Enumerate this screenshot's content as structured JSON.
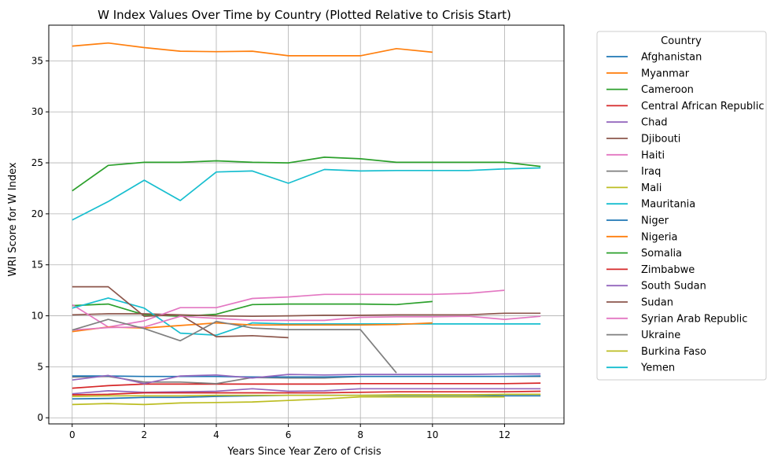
{
  "chart_data": {
    "type": "line",
    "title": "W Index Values Over Time by Country (Plotted Relative to Crisis Start)",
    "xlabel": "Years Since Year Zero of Crisis",
    "ylabel": "WRI Score for W Index",
    "xlim": [
      -0.65,
      13.65
    ],
    "ylim": [
      -0.6,
      38.5
    ],
    "xticks": [
      0,
      2,
      4,
      6,
      8,
      10,
      12
    ],
    "yticks": [
      0,
      5,
      10,
      15,
      20,
      25,
      30,
      35
    ],
    "grid": true,
    "legend": {
      "title": "Country",
      "placement": "outside-right"
    },
    "series": [
      {
        "name": "Afghanistan",
        "color": "#1f77b4",
        "x": [
          0,
          1,
          2,
          3,
          4,
          5,
          6,
          7,
          8,
          9,
          10,
          11,
          12,
          13
        ],
        "y": [
          1.85,
          1.9,
          2.0,
          2.0,
          2.1,
          2.15,
          2.2,
          2.2,
          2.2,
          2.2,
          2.2,
          2.2,
          2.15,
          2.15
        ]
      },
      {
        "name": "Myanmar",
        "color": "#ff7f0e",
        "x": [
          0,
          1,
          2,
          3,
          4,
          5,
          6,
          7,
          8,
          9,
          10
        ],
        "y": [
          36.45,
          36.75,
          36.3,
          35.95,
          35.9,
          35.95,
          35.5,
          35.5,
          35.5,
          36.2,
          35.85
        ]
      },
      {
        "name": "Cameroon",
        "color": "#2ca02c",
        "x": [
          0,
          1,
          2,
          3,
          4,
          5,
          6,
          7,
          8,
          9,
          10
        ],
        "y": [
          11.0,
          11.15,
          10.1,
          9.95,
          10.15,
          11.1,
          11.15,
          11.15,
          11.15,
          11.1,
          11.4
        ]
      },
      {
        "name": "Central African Republic",
        "color": "#d62728",
        "x": [
          0,
          1,
          2,
          3,
          4,
          5,
          6,
          7,
          8,
          9,
          10,
          11,
          12,
          13
        ],
        "y": [
          2.9,
          3.15,
          3.3,
          3.3,
          3.3,
          3.3,
          3.3,
          3.3,
          3.35,
          3.35,
          3.35,
          3.35,
          3.35,
          3.4
        ]
      },
      {
        "name": "Chad",
        "color": "#9467bd",
        "x": [
          0,
          1,
          2,
          3,
          4,
          5,
          6,
          7,
          8,
          9,
          10,
          11,
          12,
          13
        ],
        "y": [
          2.35,
          2.65,
          2.5,
          2.55,
          2.6,
          2.85,
          2.6,
          2.65,
          2.85,
          2.85,
          2.85,
          2.85,
          2.85,
          2.85
        ]
      },
      {
        "name": "Djibouti",
        "color": "#8c564b",
        "x": [
          0,
          1,
          2,
          3,
          4,
          5,
          6,
          7,
          8,
          9,
          10,
          11,
          12,
          13
        ],
        "y": [
          10.1,
          10.2,
          10.2,
          10.1,
          10.0,
          9.95,
          10.0,
          10.05,
          10.05,
          10.1,
          10.1,
          10.1,
          10.25,
          10.25
        ]
      },
      {
        "name": "Haiti",
        "color": "#e377c2",
        "x": [
          0,
          1,
          2,
          3,
          4,
          5,
          6,
          7,
          8,
          9,
          10,
          11,
          12
        ],
        "y": [
          11.1,
          8.9,
          9.5,
          10.8,
          10.8,
          11.7,
          11.85,
          12.1,
          12.1,
          12.1,
          12.1,
          12.2,
          12.5
        ]
      },
      {
        "name": "Iraq",
        "color": "#7f7f7f",
        "x": [
          0,
          1,
          2,
          3,
          4,
          5,
          6,
          7,
          8,
          9,
          10,
          11,
          12,
          13
        ],
        "y": [
          4.0,
          4.05,
          3.5,
          3.5,
          3.35,
          3.95,
          3.9,
          3.9,
          4.05,
          4.05,
          4.05,
          4.05,
          4.05,
          4.05
        ]
      },
      {
        "name": "Mali",
        "color": "#bcbd22",
        "x": [
          0,
          1,
          2,
          3,
          4,
          5,
          6,
          7,
          8,
          9,
          10,
          11,
          12
        ],
        "y": [
          1.3,
          1.4,
          1.3,
          1.45,
          1.5,
          1.55,
          1.7,
          1.85,
          2.05,
          2.05,
          2.05,
          2.05,
          2.05
        ]
      },
      {
        "name": "Mauritania",
        "color": "#17becf",
        "x": [
          0,
          1,
          2,
          3,
          4,
          5,
          6,
          7,
          8,
          9,
          10,
          11,
          12,
          13
        ],
        "y": [
          10.75,
          11.75,
          10.75,
          8.3,
          8.1,
          9.3,
          9.2,
          9.2,
          9.2,
          9.2,
          9.2,
          9.2,
          9.2,
          9.2
        ]
      },
      {
        "name": "Niger",
        "color": "#1f77b4",
        "x": [
          0,
          1,
          2,
          3,
          4,
          5,
          6,
          7,
          8,
          9,
          10,
          11,
          12,
          13
        ],
        "y": [
          4.1,
          4.1,
          4.05,
          4.05,
          4.05,
          4.0,
          4.0,
          4.0,
          4.05,
          4.05,
          4.05,
          4.05,
          4.05,
          4.1
        ]
      },
      {
        "name": "Nigeria",
        "color": "#ff7f0e",
        "x": [
          0,
          1,
          2,
          3,
          4,
          5,
          6,
          7,
          8,
          9,
          10
        ],
        "y": [
          8.45,
          8.9,
          8.8,
          9.05,
          9.3,
          9.1,
          9.1,
          9.1,
          9.1,
          9.15,
          9.3
        ]
      },
      {
        "name": "Somalia",
        "color": "#2ca02c",
        "x": [
          0,
          1,
          2,
          3,
          4,
          5,
          6,
          7,
          8,
          9,
          10,
          11,
          12,
          13
        ],
        "y": [
          22.25,
          24.75,
          25.05,
          25.05,
          25.2,
          25.05,
          25.0,
          25.55,
          25.4,
          25.05,
          25.05,
          25.05,
          25.05,
          24.65
        ]
      },
      {
        "name": "Zimbabwe",
        "color": "#d62728",
        "x": [
          0,
          1,
          2,
          3,
          4,
          5,
          6,
          7,
          8,
          9,
          10,
          11,
          12,
          13
        ],
        "y": [
          2.25,
          2.3,
          2.45,
          2.45,
          2.45,
          2.45,
          2.45,
          2.45,
          2.5,
          2.55,
          2.55,
          2.55,
          2.55,
          2.6
        ]
      },
      {
        "name": "South Sudan",
        "color": "#9467bd",
        "x": [
          0,
          1,
          2,
          3,
          4,
          5,
          6,
          7,
          8,
          9,
          10,
          11,
          12,
          13
        ],
        "y": [
          3.7,
          4.15,
          3.35,
          4.1,
          4.2,
          3.9,
          4.25,
          4.2,
          4.25,
          4.25,
          4.25,
          4.25,
          4.3,
          4.3
        ]
      },
      {
        "name": "Sudan",
        "color": "#8c564b",
        "x": [
          0,
          1,
          2,
          3,
          4,
          5,
          6
        ],
        "y": [
          12.85,
          12.85,
          9.95,
          10.1,
          7.95,
          8.05,
          7.85
        ]
      },
      {
        "name": "Syrian Arab Republic",
        "color": "#e377c2",
        "x": [
          0,
          1,
          2,
          3,
          4,
          5,
          6,
          7,
          8,
          9,
          10,
          11,
          12,
          13
        ],
        "y": [
          8.6,
          8.85,
          8.9,
          9.95,
          9.75,
          9.55,
          9.55,
          9.55,
          9.85,
          9.9,
          9.9,
          9.95,
          9.65,
          9.95
        ]
      },
      {
        "name": "Ukraine",
        "color": "#7f7f7f",
        "x": [
          0,
          1,
          2,
          3,
          4,
          5,
          6,
          7,
          8,
          9
        ],
        "y": [
          8.6,
          9.65,
          8.75,
          7.55,
          9.45,
          8.8,
          8.65,
          8.65,
          8.65,
          4.4
        ]
      },
      {
        "name": "Burkina Faso",
        "color": "#bcbd22",
        "x": [
          0,
          1,
          2,
          3,
          4,
          5,
          6,
          7,
          8,
          9,
          10,
          11,
          12,
          13
        ],
        "y": [
          2.1,
          2.15,
          2.15,
          2.15,
          2.2,
          2.2,
          2.2,
          2.2,
          2.2,
          2.25,
          2.25,
          2.25,
          2.3,
          2.3
        ]
      },
      {
        "name": "Yemen",
        "color": "#17becf",
        "x": [
          0,
          1,
          2,
          3,
          4,
          5,
          6,
          7,
          8,
          9,
          10,
          11,
          12,
          13
        ],
        "y": [
          19.4,
          21.2,
          23.3,
          21.3,
          24.1,
          24.2,
          23.0,
          24.35,
          24.2,
          24.25,
          24.25,
          24.25,
          24.4,
          24.5
        ]
      }
    ]
  }
}
